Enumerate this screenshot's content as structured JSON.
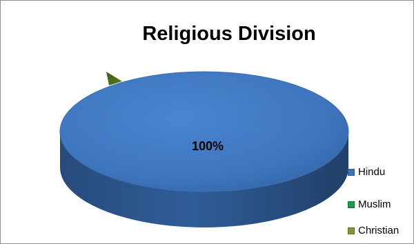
{
  "chart_data": {
    "type": "pie",
    "title": "Religious Division",
    "categories": [
      "Hindu",
      "Muslim",
      "Christian"
    ],
    "values": [
      100,
      0,
      0
    ],
    "data_labels": [
      "100%"
    ],
    "legend_position": "right",
    "colors": {
      "Hindu": "#3f73b8",
      "Muslim": "#1f9a4a",
      "Christian": "#5c7a1e"
    }
  }
}
